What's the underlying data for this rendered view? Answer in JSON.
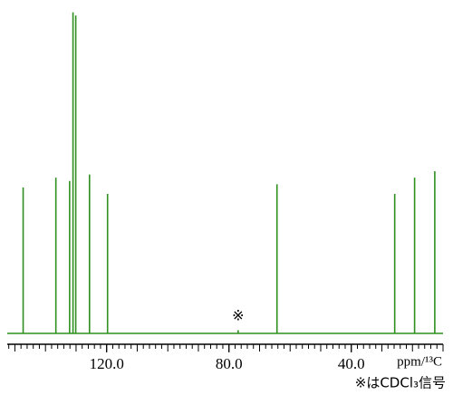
{
  "chart_data": {
    "type": "spectrum",
    "color": "#2f8f1f",
    "xlim": [
      152.5,
      10
    ],
    "ylim": [
      0,
      100
    ],
    "xticks": [
      {
        "value": 120,
        "label": "120.0"
      },
      {
        "value": 80,
        "label": "80.0"
      },
      {
        "value": 40,
        "label": "40.0"
      }
    ],
    "xminor_step": 2,
    "xmajor_step": 10,
    "xlabel": "ppm/¹³C",
    "series": [
      {
        "x": [
          147.3,
          136.6,
          132.1,
          131.0,
          130.1,
          125.6,
          119.7,
          77.0,
          64.3,
          25.8,
          19.3,
          12.7
        ],
        "values": [
          45,
          48,
          47,
          99,
          98,
          49,
          43,
          1,
          46,
          43,
          48,
          50
        ]
      }
    ],
    "annotation": {
      "text": "※",
      "x": 77.0
    },
    "note": "※はCDCl₃信号"
  }
}
